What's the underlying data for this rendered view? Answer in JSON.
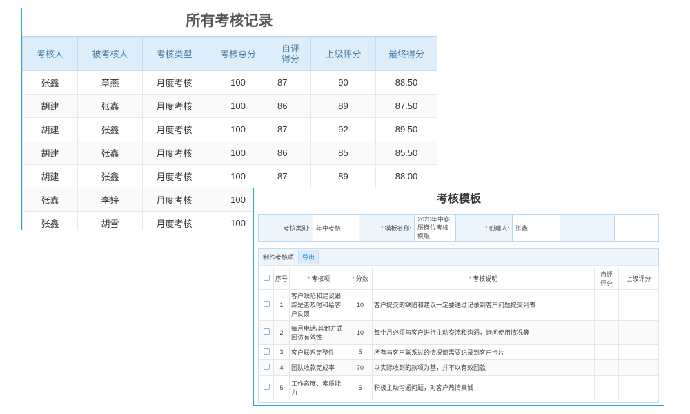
{
  "records": {
    "title": "所有考核记录",
    "columns": [
      "考核人",
      "被考核人",
      "考核类型",
      "考核总分",
      "自评得分",
      "上级评分",
      "最终得分"
    ],
    "rows": [
      [
        "张鑫",
        "章燕",
        "月度考核",
        "100",
        "87",
        "90",
        "88.50"
      ],
      [
        "胡建",
        "张鑫",
        "月度考核",
        "100",
        "86",
        "89",
        "87.50"
      ],
      [
        "胡建",
        "张鑫",
        "月度考核",
        "100",
        "87",
        "92",
        "89.50"
      ],
      [
        "胡建",
        "张鑫",
        "月度考核",
        "100",
        "86",
        "85",
        "85.50"
      ],
      [
        "胡建",
        "张鑫",
        "月度考核",
        "100",
        "87",
        "89",
        "88.00"
      ],
      [
        "张鑫",
        "李婷",
        "月度考核",
        "100",
        "",
        "",
        ""
      ],
      [
        "张鑫",
        "胡雪",
        "月度考核",
        "100",
        "",
        "",
        ""
      ]
    ]
  },
  "template": {
    "title": "考核模板",
    "category_label": "考核类别:",
    "category_value": "年中考核",
    "name_label": "模板名称:",
    "name_value": "2020年中客服岗位考核模版",
    "creator_label": "创建人:",
    "creator_value": "张鑫",
    "toolbar_label": "制作考核项",
    "export_label": "导出",
    "columns": {
      "no": "序号",
      "item": "考核项",
      "score": "分数",
      "desc": "考核说明",
      "self": "自评评分",
      "sup": "上级评分"
    },
    "rows": [
      {
        "no": "1",
        "item": "客户缺陷和建议跟踪是否及时和给客户反馈",
        "score": "10",
        "desc": "客户提交的缺陷和建议一定要通过记录到客户问题提交列表"
      },
      {
        "no": "2",
        "item": "每月电话/其他方式回访有效性",
        "score": "10",
        "desc": "每个月必须与客户进行主动交流和沟通，询问使用情况等"
      },
      {
        "no": "3",
        "item": "客户联系完整性",
        "score": "5",
        "desc": "所有与客户联系过的情况都需要记录到客户卡片"
      },
      {
        "no": "4",
        "item": "团队收款完成率",
        "score": "70",
        "desc": "以实际收到的款项为基，并不以有效回款"
      },
      {
        "no": "5",
        "item": "工作态度、素质能力",
        "score": "5",
        "desc": "积极主动沟通问题，对客户热情真诚"
      }
    ]
  }
}
